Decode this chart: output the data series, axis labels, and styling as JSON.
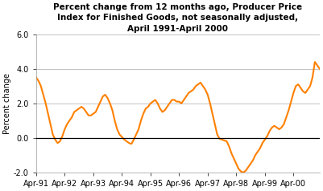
{
  "title": "Percent change from 12 months ago, Producer Price\nIndex for Finished Goods, not seasonally adjusted,\nApril 1991-April 2000",
  "ylabel": "Percent change",
  "ylim": [
    -2.0,
    6.0
  ],
  "yticks": [
    -2.0,
    0.0,
    2.0,
    4.0,
    6.0
  ],
  "xtick_labels": [
    "Apr-91",
    "Apr-92",
    "Apr-93",
    "Apr-94",
    "Apr-95",
    "Apr-96",
    "Apr-97",
    "Apr-98",
    "Apr-99",
    "Apr-00"
  ],
  "line_color": "#FF8000",
  "line_width": 1.5,
  "background_color": "#ffffff",
  "values": [
    3.5,
    3.3,
    3.0,
    2.5,
    2.0,
    1.4,
    0.8,
    0.2,
    -0.1,
    -0.3,
    -0.2,
    0.1,
    0.5,
    0.8,
    1.0,
    1.2,
    1.5,
    1.6,
    1.7,
    1.8,
    1.7,
    1.5,
    1.3,
    1.3,
    1.4,
    1.5,
    1.8,
    2.1,
    2.4,
    2.5,
    2.3,
    2.0,
    1.6,
    1.0,
    0.5,
    0.2,
    0.05,
    -0.1,
    -0.2,
    -0.3,
    -0.35,
    -0.1,
    0.2,
    0.5,
    1.0,
    1.4,
    1.7,
    1.8,
    2.0,
    2.1,
    2.2,
    2.0,
    1.7,
    1.5,
    1.6,
    1.8,
    2.0,
    2.2,
    2.2,
    2.1,
    2.1,
    2.0,
    2.2,
    2.4,
    2.6,
    2.7,
    2.8,
    3.0,
    3.1,
    3.2,
    3.0,
    2.8,
    2.5,
    2.0,
    1.4,
    0.8,
    0.2,
    -0.05,
    -0.1,
    -0.15,
    -0.2,
    -0.5,
    -0.9,
    -1.2,
    -1.5,
    -1.8,
    -1.95,
    -2.0,
    -1.9,
    -1.7,
    -1.5,
    -1.3,
    -1.0,
    -0.8,
    -0.6,
    -0.3,
    -0.1,
    0.1,
    0.4,
    0.6,
    0.7,
    0.6,
    0.5,
    0.6,
    0.8,
    1.2,
    1.6,
    2.1,
    2.6,
    3.0,
    3.1,
    2.9,
    2.7,
    2.6,
    2.8,
    3.0,
    3.5,
    4.4,
    4.2,
    4.0
  ]
}
